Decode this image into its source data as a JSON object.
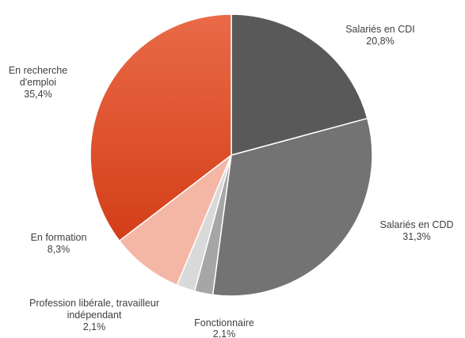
{
  "chart_data": {
    "type": "pie",
    "title": "",
    "start_angle_deg": 0,
    "direction": "clockwise",
    "slices": [
      {
        "label": "Salariés en CDI",
        "value": 20.8,
        "value_text": "20,8%",
        "color": "#595959"
      },
      {
        "label": "Salariés en CDD",
        "value": 31.3,
        "value_text": "31,3%",
        "color": "#737373"
      },
      {
        "label": "Fonctionnaire",
        "value": 2.1,
        "value_text": "2,1%",
        "color": "#a6a6a6"
      },
      {
        "label": "Profession libérale, travailleur indépendant",
        "value": 2.1,
        "value_text": "2,1%",
        "color": "#d9d9d9"
      },
      {
        "label": "En formation",
        "value": 8.3,
        "value_text": "8,3%",
        "color": "#f4b7a6"
      },
      {
        "label": "En recherche d'emploi",
        "value": 35.4,
        "value_text": "35,4%",
        "color": "#e4512a"
      }
    ]
  }
}
